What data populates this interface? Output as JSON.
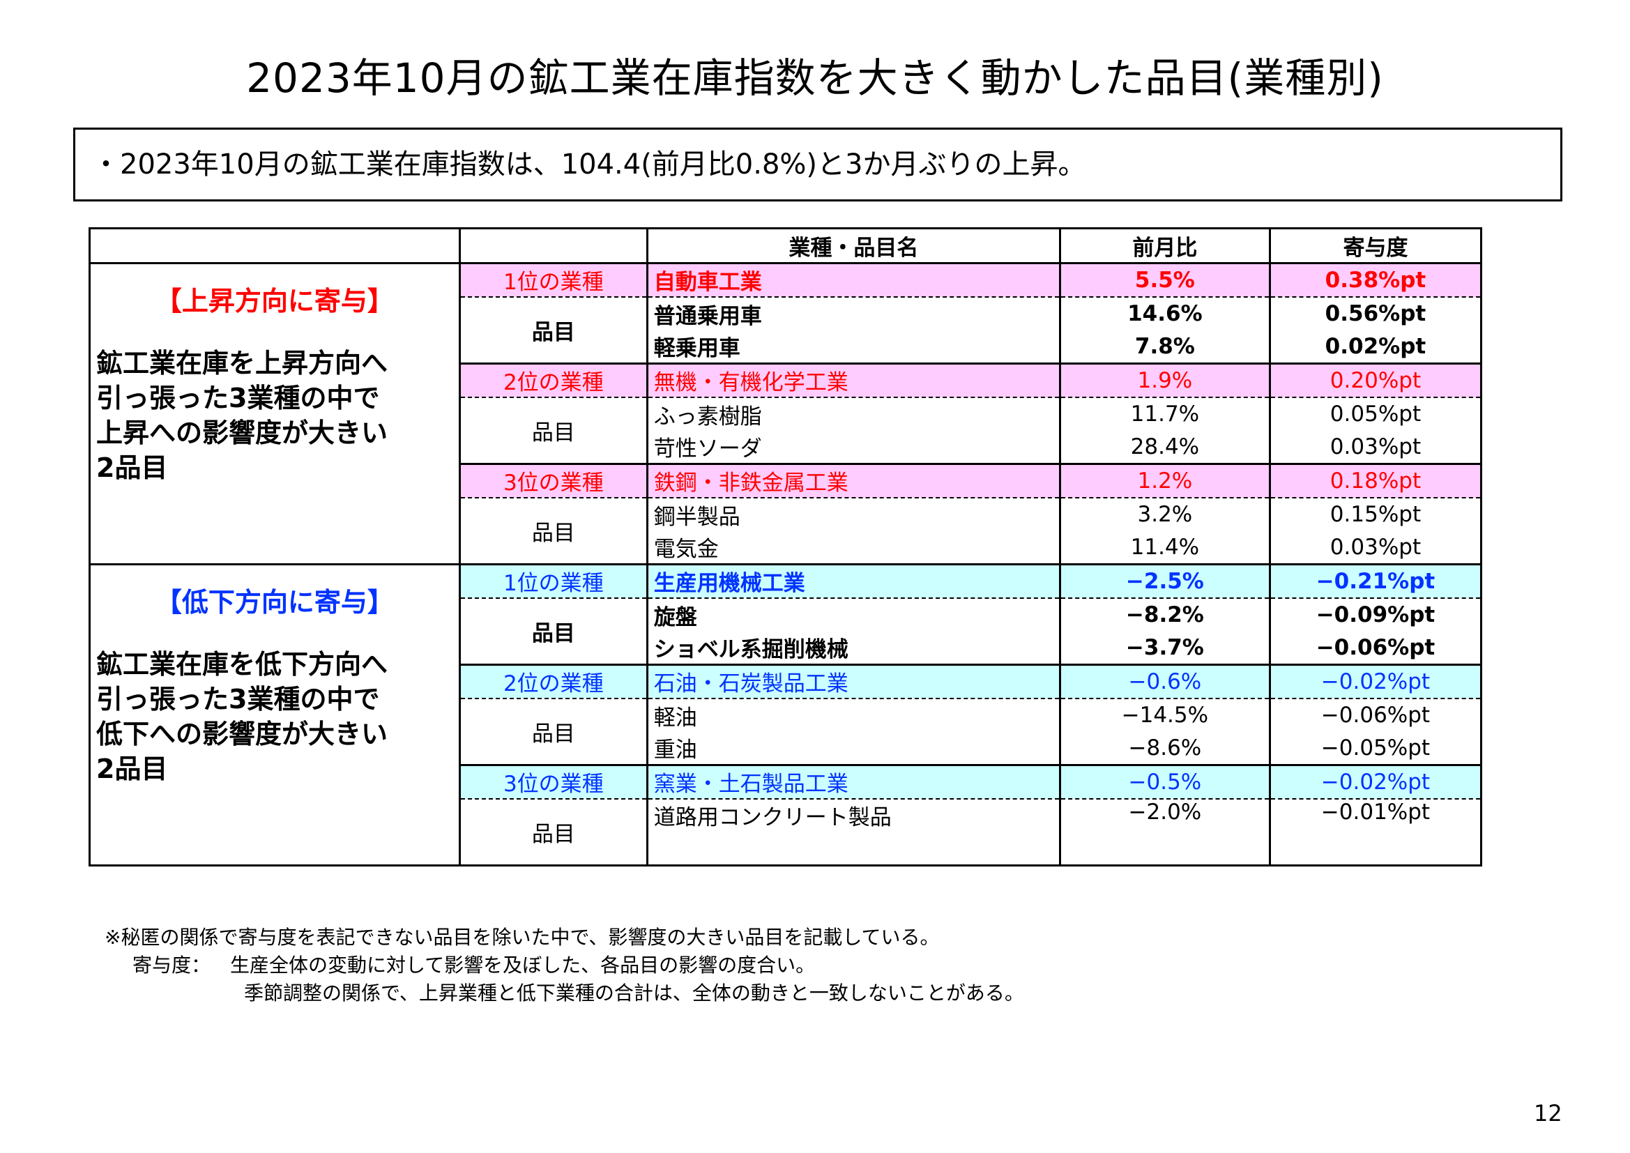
{
  "title": "2023年10月の鉱工業在庫指数を大きく動かした品目(業種別)",
  "summary": "・2023年10月の鉱工業在庫指数は、104.4(前月比0.8%)と3か月ぶりの上昇。",
  "table": {
    "headers": {
      "name": "業種・品目名",
      "mom": "前月比",
      "contrib": "寄与度"
    },
    "item_label": "品目",
    "up": {
      "heading": "【上昇方向に寄与】",
      "desc": [
        "鉱工業在庫を上昇方向へ",
        "引っ張った3業種の中で",
        "上昇への影響度が大きい",
        "2品目"
      ],
      "groups": [
        {
          "rank": "1位の業種",
          "industry": "自動車工業",
          "mom": "5.5%",
          "contrib": "0.38%pt",
          "items": [
            {
              "name": "普通乗用車",
              "mom": "14.6%",
              "contrib": "0.56%pt"
            },
            {
              "name": "軽乗用車",
              "mom": "7.8%",
              "contrib": "0.02%pt"
            }
          ]
        },
        {
          "rank": "2位の業種",
          "industry": "無機・有機化学工業",
          "mom": "1.9%",
          "contrib": "0.20%pt",
          "items": [
            {
              "name": "ふっ素樹脂",
              "mom": "11.7%",
              "contrib": "0.05%pt"
            },
            {
              "name": "苛性ソーダ",
              "mom": "28.4%",
              "contrib": "0.03%pt"
            }
          ]
        },
        {
          "rank": "3位の業種",
          "industry": "鉄鋼・非鉄金属工業",
          "mom": "1.2%",
          "contrib": "0.18%pt",
          "items": [
            {
              "name": "鋼半製品",
              "mom": "3.2%",
              "contrib": "0.15%pt"
            },
            {
              "name": "電気金",
              "mom": "11.4%",
              "contrib": "0.03%pt"
            }
          ]
        }
      ]
    },
    "down": {
      "heading": "【低下方向に寄与】",
      "desc": [
        "鉱工業在庫を低下方向へ",
        "引っ張った3業種の中で",
        "低下への影響度が大きい",
        "2品目"
      ],
      "groups": [
        {
          "rank": "1位の業種",
          "industry": "生産用機械工業",
          "mom": "−2.5%",
          "contrib": "−0.21%pt",
          "items": [
            {
              "name": "旋盤",
              "mom": "−8.2%",
              "contrib": "−0.09%pt"
            },
            {
              "name": "ショベル系掘削機械",
              "mom": "−3.7%",
              "contrib": "−0.06%pt"
            }
          ]
        },
        {
          "rank": "2位の業種",
          "industry": "石油・石炭製品工業",
          "mom": "−0.6%",
          "contrib": "−0.02%pt",
          "items": [
            {
              "name": "軽油",
              "mom": "−14.5%",
              "contrib": "−0.06%pt"
            },
            {
              "name": "重油",
              "mom": "−8.6%",
              "contrib": "−0.05%pt"
            }
          ]
        },
        {
          "rank": "3位の業種",
          "industry": "窯業・土石製品工業",
          "mom": "−0.5%",
          "contrib": "−0.02%pt",
          "items": [
            {
              "name": "道路用コンクリート製品",
              "mom": "−2.0%",
              "contrib": "−0.01%pt"
            },
            {
              "name": "",
              "mom": "",
              "contrib": ""
            }
          ]
        }
      ]
    }
  },
  "notes": {
    "line1": "※秘匿の関係で寄与度を表記できない品目を除いた中で、影響度の大きい品目を記載している。",
    "line2_label": "寄与度：",
    "line2_text": "生産全体の変動に対して影響を及ぼした、各品目の影響の度合い。",
    "line3": "季節調整の関係で、上昇業種と低下業種の合計は、全体の動きと一致しないことがある。"
  },
  "page_number": "12"
}
